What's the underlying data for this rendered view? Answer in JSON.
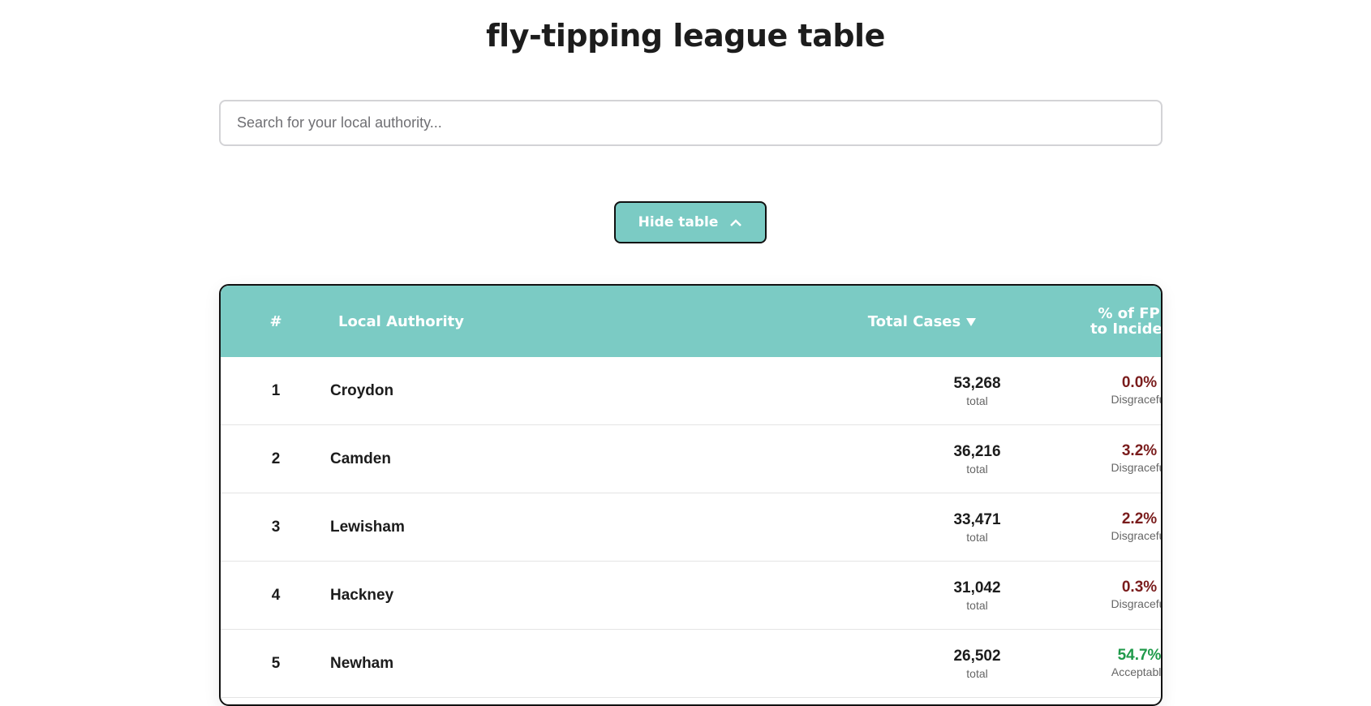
{
  "header": {
    "title": "fly-tipping league table"
  },
  "search": {
    "placeholder": "Search for your local authority..."
  },
  "button": {
    "label": "Hide table"
  },
  "table": {
    "columns": [
      "#",
      "Local Authority",
      "Total Cases",
      "% of FPNs\nto Incidents"
    ],
    "rows": [
      {
        "rank": "1",
        "authority": "Croydon",
        "total": "53,268",
        "total_label": "total",
        "pct": "0.0%",
        "rating": "Disgraceful",
        "color": "#7a1c1c"
      },
      {
        "rank": "2",
        "authority": "Camden",
        "total": "36,216",
        "total_label": "total",
        "pct": "3.2%",
        "rating": "Disgraceful",
        "color": "#7a1c1c"
      },
      {
        "rank": "3",
        "authority": "Lewisham",
        "total": "33,471",
        "total_label": "total",
        "pct": "2.2%",
        "rating": "Disgraceful",
        "color": "#7a1c1c"
      },
      {
        "rank": "4",
        "authority": "Hackney",
        "total": "31,042",
        "total_label": "total",
        "pct": "0.3%",
        "rating": "Disgraceful",
        "color": "#7a1c1c"
      },
      {
        "rank": "5",
        "authority": "Newham",
        "total": "26,502",
        "total_label": "total",
        "pct": "54.7%",
        "rating": "Acceptable",
        "color": "#1f9a4a"
      }
    ]
  }
}
